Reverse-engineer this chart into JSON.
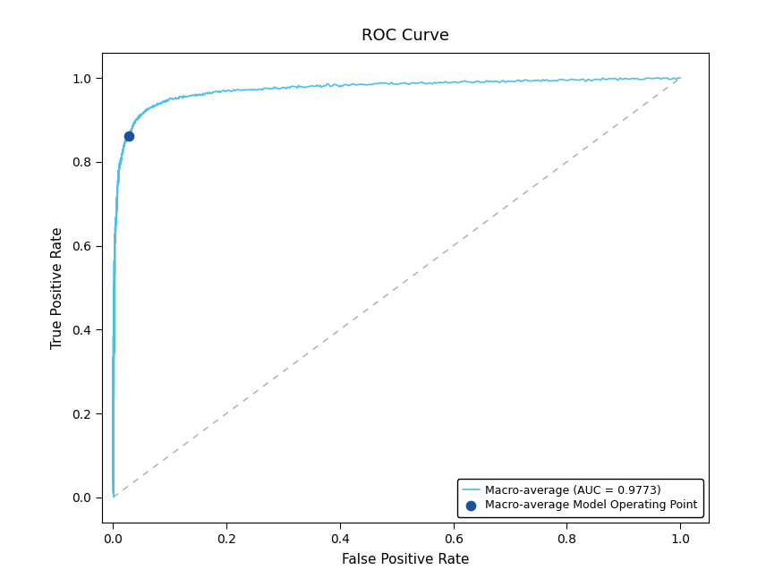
{
  "title": "ROC Curve",
  "xlabel": "False Positive Rate",
  "ylabel": "True Positive Rate",
  "auc": 0.9773,
  "operating_point": [
    0.027,
    0.862
  ],
  "roc_color": "#4DBEEE",
  "op_color": "#1A52A0",
  "diagonal_color": "#AAAAAA",
  "legend_labels": [
    "Macro-average (AUC = 0.9773)",
    "Macro-average Model Operating Point"
  ],
  "xlim": [
    -0.02,
    1.05
  ],
  "ylim": [
    -0.06,
    1.06
  ],
  "background_color": "#ffffff",
  "fig_width": 8.75,
  "fig_height": 6.56,
  "dpi": 100
}
